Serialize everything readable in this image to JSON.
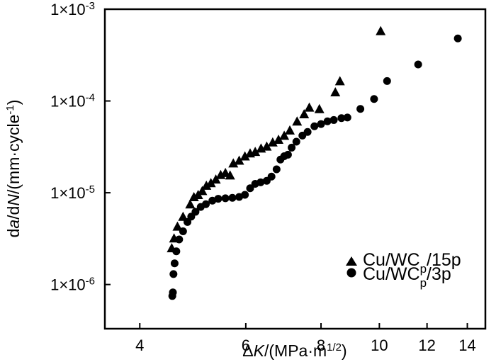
{
  "chart_data": {
    "type": "scatter",
    "title": "",
    "xscale": "log",
    "yscale": "log",
    "xlim": [
      3.5,
      15
    ],
    "ylim": [
      3.3e-07,
      0.001
    ],
    "xticks": [
      {
        "value": 4,
        "label": "4"
      },
      {
        "value": 6,
        "label": "6"
      },
      {
        "value": 8,
        "label": "8"
      },
      {
        "value": 10,
        "label": "10"
      },
      {
        "value": 12,
        "label": "12"
      },
      {
        "value": 14,
        "label": "14"
      }
    ],
    "yticks": [
      {
        "value": 0.001,
        "mant": "1×10",
        "exp": "-3"
      },
      {
        "value": 0.0001,
        "mant": "1×10",
        "exp": "-4"
      },
      {
        "value": 1e-05,
        "mant": "1×10",
        "exp": "-5"
      },
      {
        "value": 1e-06,
        "mant": "1×10",
        "exp": "-6"
      }
    ],
    "xlabel": {
      "pre": "Δ",
      "italic": "K",
      "post": "/(MPa·m",
      "sup": "1/2",
      "end": ")"
    },
    "ylabel": {
      "p1": "d",
      "i1": "a",
      "p2": "/d",
      "i2": "N",
      "p3": "/(mm·cycle",
      "sup": "-1",
      "end": ")"
    },
    "series": [
      {
        "name": "Cu/WCp/15p",
        "legend": {
          "pre": "Cu/WC",
          "sub": "p",
          "post": "/15p"
        },
        "marker": "triangle",
        "points": [
          [
            4.52,
            2.5e-06
          ],
          [
            4.56,
            3.2e-06
          ],
          [
            4.62,
            4.3e-06
          ],
          [
            4.72,
            5.5e-06
          ],
          [
            4.85,
            7.5e-06
          ],
          [
            4.92,
            9e-06
          ],
          [
            5.0,
            9.5e-06
          ],
          [
            5.08,
            1.05e-05
          ],
          [
            5.16,
            1.2e-05
          ],
          [
            5.25,
            1.28e-05
          ],
          [
            5.35,
            1.4e-05
          ],
          [
            5.45,
            1.57e-05
          ],
          [
            5.55,
            1.65e-05
          ],
          [
            5.65,
            1.55e-05
          ],
          [
            5.72,
            2.1e-05
          ],
          [
            5.85,
            2.25e-05
          ],
          [
            5.98,
            2.5e-05
          ],
          [
            6.1,
            2.7e-05
          ],
          [
            6.22,
            2.8e-05
          ],
          [
            6.36,
            3.05e-05
          ],
          [
            6.5,
            3.2e-05
          ],
          [
            6.65,
            3.55e-05
          ],
          [
            6.8,
            3.8e-05
          ],
          [
            6.95,
            4.2e-05
          ],
          [
            7.1,
            4.8e-05
          ],
          [
            7.3,
            6e-05
          ],
          [
            7.5,
            7.2e-05
          ],
          [
            7.65,
            8.5e-05
          ],
          [
            7.95,
            8.2e-05
          ],
          [
            8.45,
            0.000125
          ],
          [
            8.6,
            0.000165
          ],
          [
            10.05,
            0.00058
          ]
        ]
      },
      {
        "name": "Cu/WCp/3p",
        "legend": {
          "pre": "Cu/WC",
          "sub": "p",
          "post": "/3p"
        },
        "marker": "circle",
        "points": [
          [
            4.53,
            7.5e-07
          ],
          [
            4.54,
            8.2e-07
          ],
          [
            4.55,
            1.3e-06
          ],
          [
            4.57,
            1.7e-06
          ],
          [
            4.6,
            2.3e-06
          ],
          [
            4.65,
            3.1e-06
          ],
          [
            4.72,
            3.8e-06
          ],
          [
            4.8,
            4.8e-06
          ],
          [
            4.87,
            5.5e-06
          ],
          [
            4.95,
            6.2e-06
          ],
          [
            5.05,
            7e-06
          ],
          [
            5.15,
            7.5e-06
          ],
          [
            5.28,
            8.2e-06
          ],
          [
            5.4,
            8.6e-06
          ],
          [
            5.55,
            8.7e-06
          ],
          [
            5.7,
            8.8e-06
          ],
          [
            5.85,
            9e-06
          ],
          [
            5.98,
            9.5e-06
          ],
          [
            6.1,
            1.12e-05
          ],
          [
            6.22,
            1.25e-05
          ],
          [
            6.35,
            1.3e-05
          ],
          [
            6.5,
            1.35e-05
          ],
          [
            6.62,
            1.5e-05
          ],
          [
            6.75,
            1.8e-05
          ],
          [
            6.85,
            2.3e-05
          ],
          [
            6.95,
            2.5e-05
          ],
          [
            7.05,
            2.6e-05
          ],
          [
            7.15,
            3.1e-05
          ],
          [
            7.28,
            3.6e-05
          ],
          [
            7.45,
            4.2e-05
          ],
          [
            7.6,
            4.6e-05
          ],
          [
            7.8,
            5.3e-05
          ],
          [
            8.0,
            5.6e-05
          ],
          [
            8.2,
            6e-05
          ],
          [
            8.4,
            6.2e-05
          ],
          [
            8.65,
            6.5e-05
          ],
          [
            8.85,
            6.6e-05
          ],
          [
            9.3,
            8.2e-05
          ],
          [
            9.8,
            0.000105
          ],
          [
            10.3,
            0.000165
          ],
          [
            11.6,
            0.00025
          ],
          [
            13.5,
            0.00048
          ]
        ]
      }
    ],
    "legend_position": "bottom-right"
  }
}
